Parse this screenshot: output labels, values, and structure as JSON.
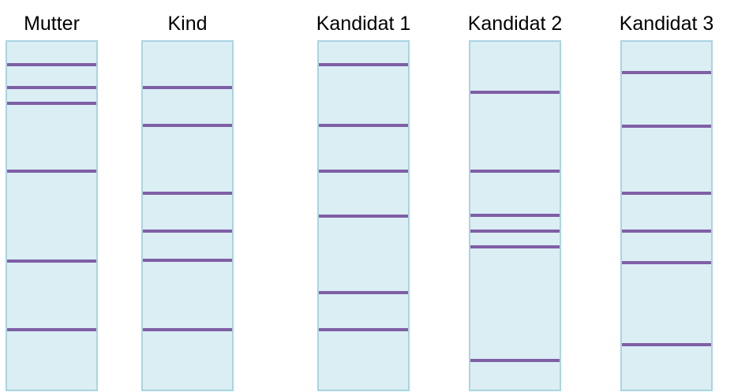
{
  "lanes": [
    {
      "label": "Mutter"
    },
    {
      "label": "Kind"
    },
    {
      "label": "Kandidat 1"
    },
    {
      "label": "Kandidat 2"
    },
    {
      "label": "Kandidat 3"
    }
  ]
}
